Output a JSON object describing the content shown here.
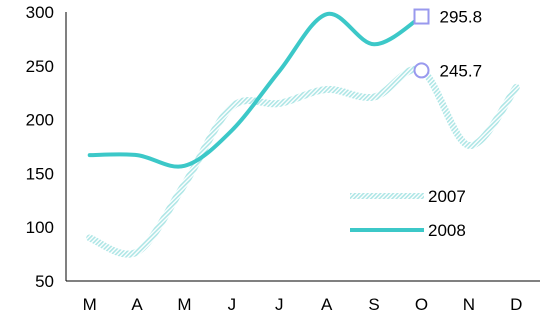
{
  "chart_data": {
    "type": "line",
    "categories": [
      "M",
      "A",
      "M",
      "J",
      "J",
      "A",
      "S",
      "O",
      "N",
      "D"
    ],
    "ylim": [
      50,
      300
    ],
    "yticks": [
      50,
      100,
      150,
      200,
      250,
      300
    ],
    "smooth": true,
    "grid": false,
    "legend_position": "bottom-right",
    "series": [
      {
        "name": "2007",
        "color": "#b8ecec",
        "style": "hatched",
        "values": [
          90,
          77,
          140,
          212,
          215,
          228,
          221,
          245.7,
          176,
          230
        ]
      },
      {
        "name": "2008",
        "color": "#3cc8c8",
        "style": "solid",
        "values": [
          167,
          167,
          157,
          190,
          245,
          298,
          270,
          295.8,
          null,
          null
        ]
      }
    ],
    "data_labels": [
      {
        "series": "2008",
        "category_index": 7,
        "text": "295.8",
        "marker": "square",
        "marker_color": "#9999ee"
      },
      {
        "series": "2007",
        "category_index": 7,
        "text": "245.7",
        "marker": "circle",
        "marker_color": "#9999ee"
      }
    ]
  }
}
